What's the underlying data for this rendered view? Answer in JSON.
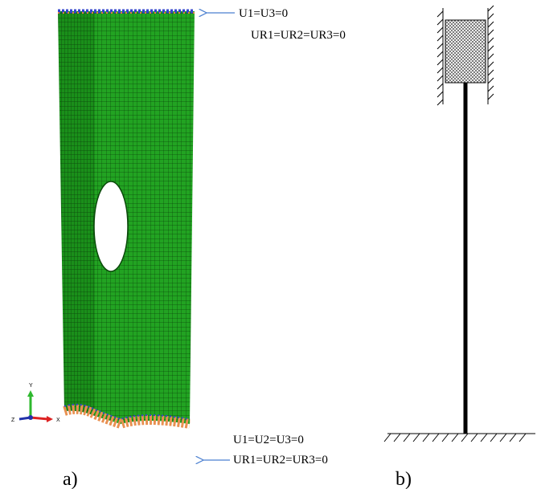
{
  "annotations_top": {
    "line1": "U1=U3=0",
    "line2": "UR1=UR2=UR3=0"
  },
  "annotations_bottom": {
    "line1": "U1=U2=U3=0",
    "line2": "UR1=UR2=UR3=0"
  },
  "axes": {
    "y": "Y",
    "z": "Z",
    "x": "X"
  },
  "labels": {
    "a": "a)",
    "b": "b)"
  }
}
